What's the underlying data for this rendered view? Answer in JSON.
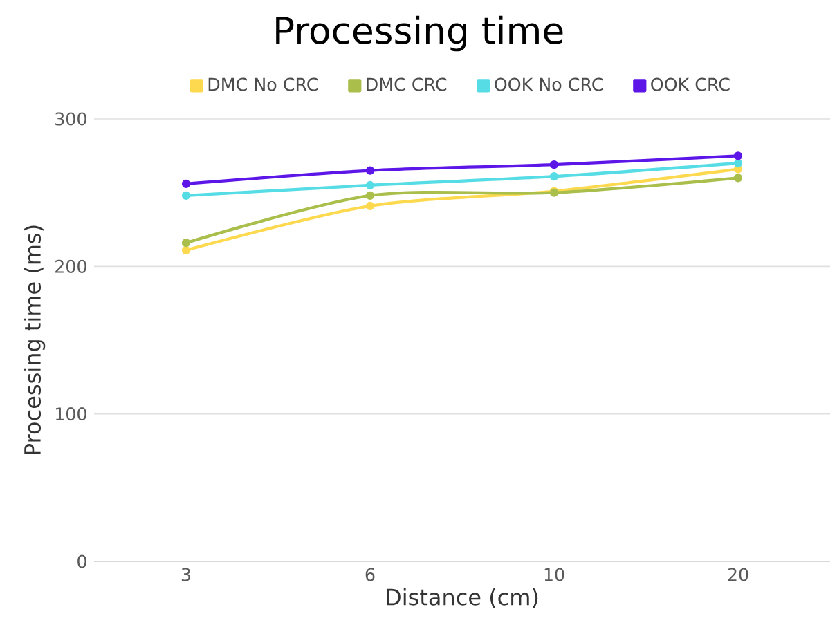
{
  "chart_data": {
    "type": "line",
    "title": "Processing time",
    "xlabel": "Distance (cm)",
    "ylabel": "Processing time (ms)",
    "categories": [
      "3",
      "6",
      "10",
      "20"
    ],
    "series": [
      {
        "name": "DMC No CRC",
        "color": "#fcd94e",
        "values": [
          211,
          241,
          251,
          266
        ]
      },
      {
        "name": "DMC CRC",
        "color": "#a9be4b",
        "values": [
          216,
          248,
          250,
          260
        ]
      },
      {
        "name": "OOK No CRC",
        "color": "#56dce4",
        "values": [
          248,
          255,
          261,
          270
        ]
      },
      {
        "name": "OOK CRC",
        "color": "#5d16e8",
        "values": [
          256,
          265,
          269,
          275
        ]
      }
    ],
    "ylim": [
      0,
      300
    ],
    "yticks": [
      0,
      100,
      200,
      300
    ],
    "grid": "y",
    "legend": "top",
    "marker": "circle",
    "line_style": "solid"
  }
}
